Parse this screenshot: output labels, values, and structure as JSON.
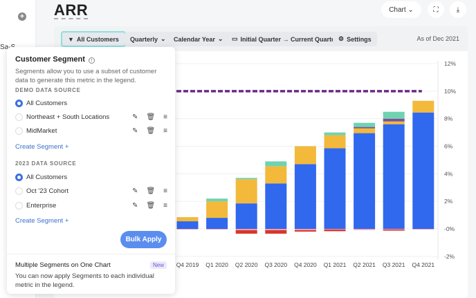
{
  "sidebar": {
    "partial_label": "Sa-S"
  },
  "header": {
    "title": "ARR",
    "view_select": "Chart",
    "fullscreen_icon": "expand-icon",
    "download_icon": "download-icon"
  },
  "toolbar": {
    "segment": "All Customers",
    "frequency": "Quarterly",
    "year_type": "Calendar Year",
    "range": "Initial Quarter → Current Quarter",
    "settings": "Settings",
    "as_of": "As of Dec 2021"
  },
  "popover": {
    "title": "Customer Segment",
    "description": "Segments allow you to use a subset of customer data to generate this metric in the legend.",
    "sources": [
      {
        "name": "DEMO DATA SOURCE",
        "items": [
          {
            "label": "All Customers",
            "selected": true
          },
          {
            "label": "Northeast + South Locations",
            "selected": false
          },
          {
            "label": "MidMarket",
            "selected": false
          }
        ],
        "create": "Create Segment +"
      },
      {
        "name": "2023 DATA SOURCE",
        "items": [
          {
            "label": "All Customers",
            "selected": true
          },
          {
            "label": "Oct '23 Cohort",
            "selected": false
          },
          {
            "label": "Enterprise",
            "selected": false
          }
        ],
        "create": "Create Segment +"
      }
    ],
    "bulk_apply": "Bulk Apply",
    "footer": {
      "title": "Multiple Segments on One Chart",
      "badge": "New",
      "text": "You can now apply Segments to each individual metric in the legend."
    }
  },
  "chart_data": {
    "type": "bar",
    "stacked": true,
    "categories": [
      "Q4 2019",
      "Q1 2020",
      "Q2 2020",
      "Q3 2020",
      "Q4 2020",
      "Q1 2021",
      "Q2 2021",
      "Q3 2021",
      "Q4 2021"
    ],
    "series": [
      {
        "color": "#3068ee",
        "values": [
          0.55,
          0.8,
          1.85,
          3.3,
          4.7,
          5.85,
          6.95,
          7.6,
          8.45
        ]
      },
      {
        "color": "#f2b93b",
        "values": [
          0.3,
          1.2,
          1.75,
          1.25,
          1.3,
          0.95,
          0.35,
          0.2,
          0.85
        ]
      },
      {
        "color": "#7b4f9d",
        "values": [
          0,
          0,
          0,
          0,
          0,
          0,
          0.1,
          0.2,
          0
        ]
      },
      {
        "color": "#6fd3b0",
        "values": [
          0,
          0.2,
          0.1,
          0.35,
          0,
          0.2,
          0.3,
          0.5,
          0
        ]
      },
      {
        "color": "#f0a0a8",
        "values": [
          -0.05,
          -0.05,
          -0.1,
          -0.1,
          -0.1,
          -0.05,
          -0.08,
          -0.05,
          -0.05
        ]
      },
      {
        "color": "#d8372b",
        "values": [
          0,
          0,
          -0.25,
          -0.25,
          -0.1,
          -0.12,
          0,
          -0.08,
          0
        ]
      }
    ],
    "target_line": {
      "value": 10,
      "color": "#6b2a86",
      "style": "dashed"
    },
    "y_ticks": [
      "-2%",
      "-0%",
      "2%",
      "4%",
      "6%",
      "8%",
      "10%",
      "12%"
    ],
    "ylim": [
      -2,
      12
    ],
    "y_axis_side": "right",
    "grid": true
  }
}
